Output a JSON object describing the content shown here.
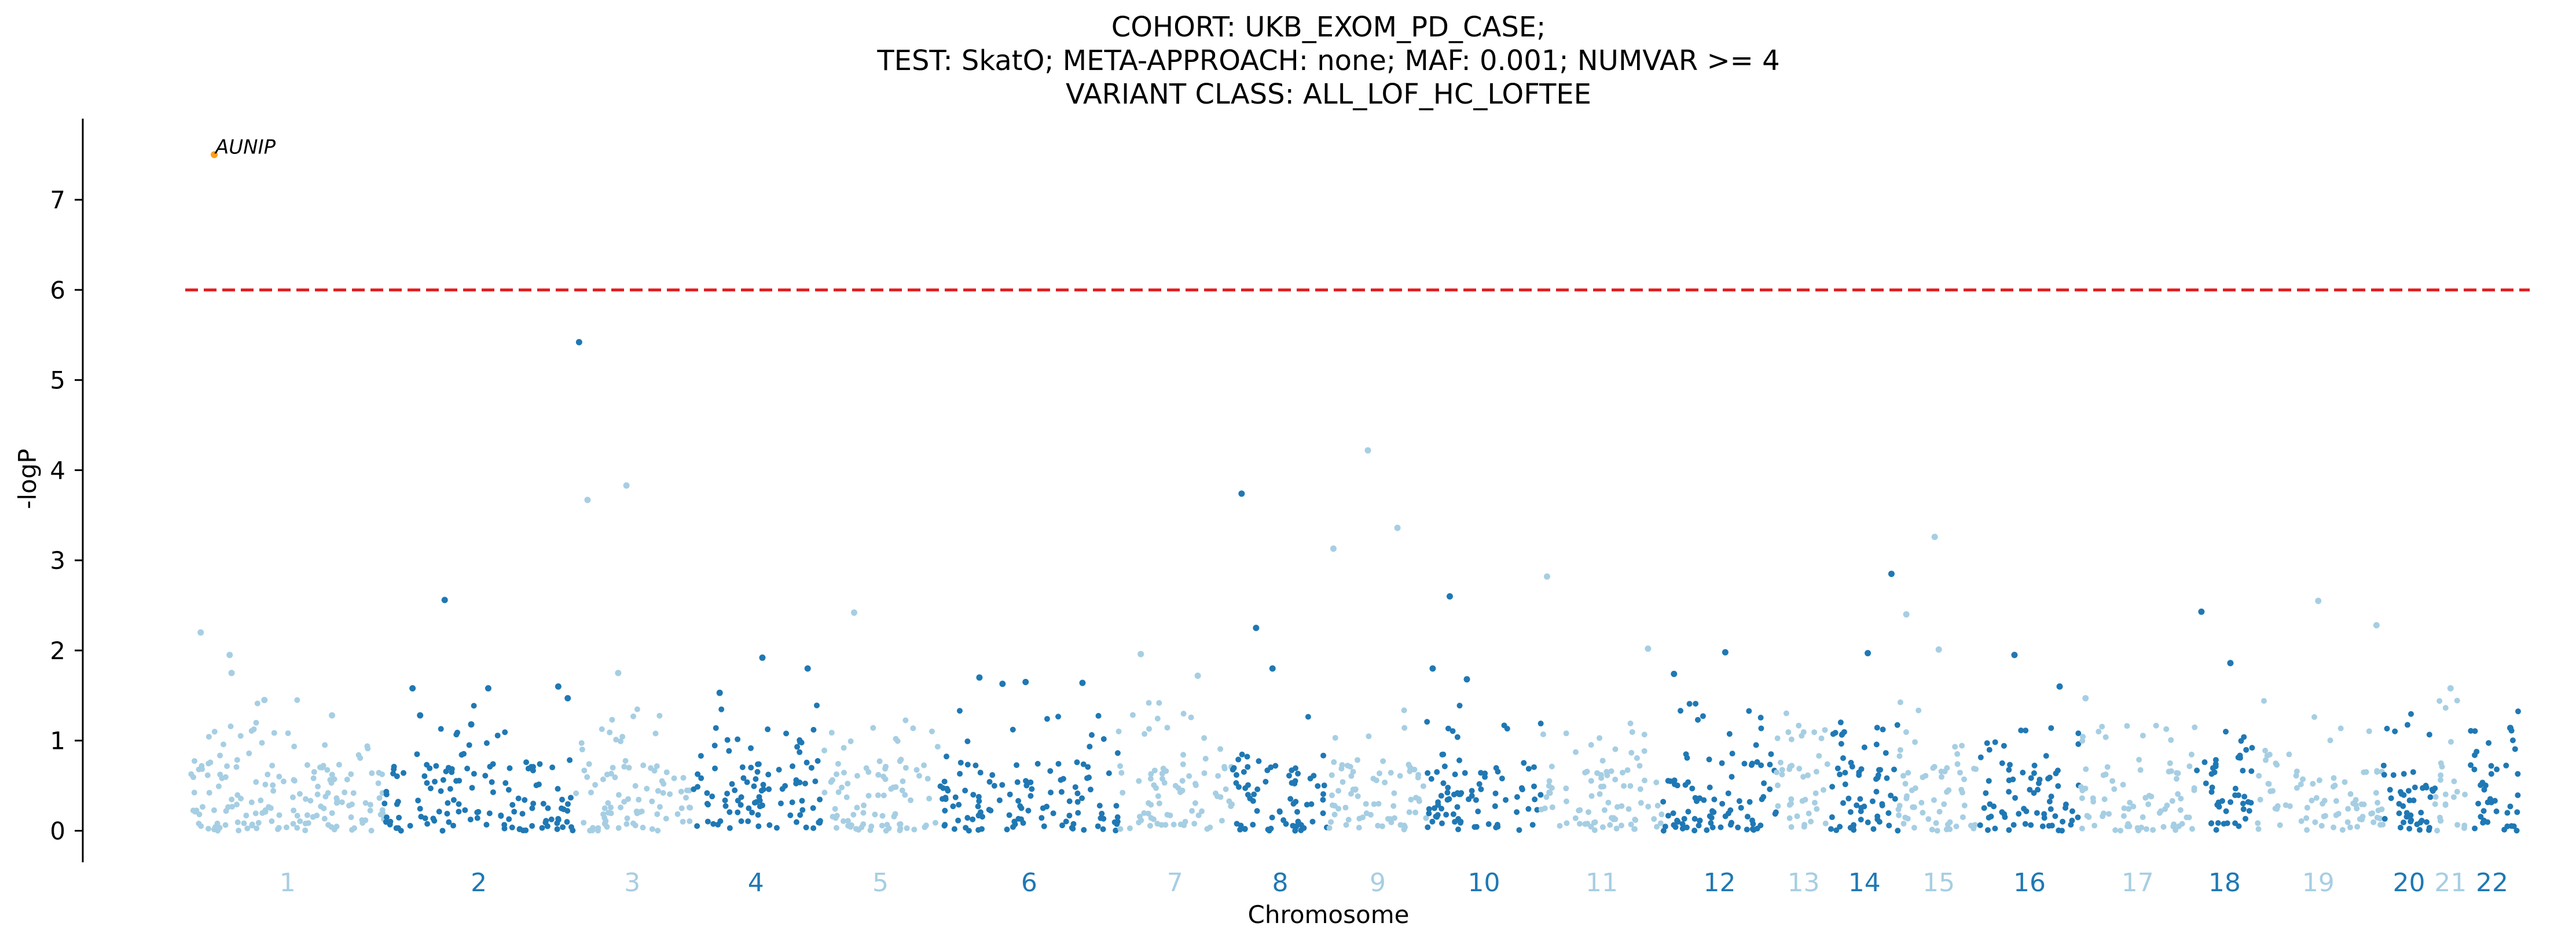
{
  "title": {
    "line1": "COHORT: UKB_EXOM_PD_CASE;",
    "line2": "TEST: SkatO; META-APPROACH: none; MAF: 0.001; NUMVAR >= 4",
    "line3": "VARIANT CLASS: ALL_LOF_HC_LOFTEE"
  },
  "chart_data": {
    "type": "scatter",
    "subtype": "manhattan",
    "xlabel": "Chromosome",
    "ylabel": "-logP",
    "ylim": [
      -0.35,
      7.9
    ],
    "yticks": [
      0,
      1,
      2,
      3,
      4,
      5,
      6,
      7
    ],
    "threshold": {
      "value": 6,
      "style": "dashed",
      "color": "#e41a1c"
    },
    "grid": false,
    "legend": "none",
    "colors": {
      "odd": "#a6cee3",
      "even": "#1f78b4",
      "highlight": "#ff9f1c",
      "threshold": "#e41a1c"
    },
    "chromosomes": [
      {
        "label": "1",
        "start": 0,
        "end": 1.0
      },
      {
        "label": "2",
        "start": 1.0,
        "end": 1.98
      },
      {
        "label": "3",
        "start": 1.98,
        "end": 2.59
      },
      {
        "label": "4",
        "start": 2.59,
        "end": 3.26
      },
      {
        "label": "5",
        "start": 3.26,
        "end": 3.88
      },
      {
        "label": "6",
        "start": 3.88,
        "end": 4.8
      },
      {
        "label": "7",
        "start": 4.8,
        "end": 5.39
      },
      {
        "label": "8",
        "start": 5.39,
        "end": 5.89
      },
      {
        "label": "9",
        "start": 5.89,
        "end": 6.4
      },
      {
        "label": "10",
        "start": 6.4,
        "end": 6.99
      },
      {
        "label": "11",
        "start": 6.99,
        "end": 7.62
      },
      {
        "label": "12",
        "start": 7.62,
        "end": 8.21
      },
      {
        "label": "13",
        "start": 8.21,
        "end": 8.49
      },
      {
        "label": "14",
        "start": 8.49,
        "end": 8.84
      },
      {
        "label": "15",
        "start": 8.84,
        "end": 9.26
      },
      {
        "label": "16",
        "start": 9.26,
        "end": 9.78
      },
      {
        "label": "17",
        "start": 9.78,
        "end": 10.38
      },
      {
        "label": "18",
        "start": 10.38,
        "end": 10.68
      },
      {
        "label": "19",
        "start": 10.68,
        "end": 11.35
      },
      {
        "label": "20",
        "start": 11.35,
        "end": 11.62
      },
      {
        "label": "21",
        "start": 11.62,
        "end": 11.78
      },
      {
        "label": "22",
        "start": 11.78,
        "end": 12.05
      }
    ],
    "points_per_chromosome": [
      162,
      130,
      88,
      96,
      85,
      118,
      80,
      70,
      72,
      84,
      86,
      90,
      42,
      62,
      62,
      72,
      82,
      46,
      84,
      46,
      24,
      42
    ],
    "notable_points": [
      {
        "chr": "1",
        "pos": 0.12,
        "y": 7.5,
        "label": "AUNIP",
        "highlight": true
      },
      {
        "chr": "1",
        "pos": 0.05,
        "y": 2.2
      },
      {
        "chr": "1",
        "pos": 0.2,
        "y": 1.95
      },
      {
        "chr": "1",
        "pos": 0.21,
        "y": 1.75
      },
      {
        "chr": "1",
        "pos": 0.38,
        "y": 1.45
      },
      {
        "chr": "1",
        "pos": 0.73,
        "y": 1.28
      },
      {
        "chr": "2",
        "pos": 0.15,
        "y": 1.58
      },
      {
        "chr": "2",
        "pos": 0.19,
        "y": 1.28
      },
      {
        "chr": "2",
        "pos": 0.32,
        "y": 2.56
      },
      {
        "chr": "2",
        "pos": 0.46,
        "y": 1.18
      },
      {
        "chr": "2",
        "pos": 0.55,
        "y": 1.58
      },
      {
        "chr": "2",
        "pos": 0.92,
        "y": 1.6
      },
      {
        "chr": "2",
        "pos": 0.97,
        "y": 1.47
      },
      {
        "chr": "2",
        "pos": 1.03,
        "y": 5.42
      },
      {
        "chr": "3",
        "pos": 0.12,
        "y": 3.67
      },
      {
        "chr": "3",
        "pos": 0.45,
        "y": 3.83
      },
      {
        "chr": "3",
        "pos": 0.38,
        "y": 1.75
      },
      {
        "chr": "4",
        "pos": 0.22,
        "y": 1.53
      },
      {
        "chr": "4",
        "pos": 0.55,
        "y": 1.92
      },
      {
        "chr": "4",
        "pos": 0.9,
        "y": 1.8
      },
      {
        "chr": "5",
        "pos": 0.28,
        "y": 2.42
      },
      {
        "chr": "6",
        "pos": 0.22,
        "y": 1.7
      },
      {
        "chr": "6",
        "pos": 0.35,
        "y": 1.63
      },
      {
        "chr": "6",
        "pos": 0.48,
        "y": 1.65
      },
      {
        "chr": "6",
        "pos": 0.8,
        "y": 1.64
      },
      {
        "chr": "7",
        "pos": 0.2,
        "y": 1.96
      },
      {
        "chr": "7",
        "pos": 0.7,
        "y": 1.72
      },
      {
        "chr": "8",
        "pos": 0.1,
        "y": 3.74
      },
      {
        "chr": "8",
        "pos": 0.25,
        "y": 2.25
      },
      {
        "chr": "8",
        "pos": 0.42,
        "y": 1.8
      },
      {
        "chr": "9",
        "pos": 0.05,
        "y": 3.13
      },
      {
        "chr": "9",
        "pos": 0.4,
        "y": 4.22
      },
      {
        "chr": "9",
        "pos": 0.7,
        "y": 3.36
      },
      {
        "chr": "10",
        "pos": 0.05,
        "y": 1.8
      },
      {
        "chr": "10",
        "pos": 0.2,
        "y": 2.6
      },
      {
        "chr": "10",
        "pos": 0.35,
        "y": 1.68
      },
      {
        "chr": "11",
        "pos": 0.05,
        "y": 2.82
      },
      {
        "chr": "11",
        "pos": 0.88,
        "y": 2.02
      },
      {
        "chr": "12",
        "pos": 0.1,
        "y": 1.74
      },
      {
        "chr": "12",
        "pos": 0.55,
        "y": 1.98
      },
      {
        "chr": "14",
        "pos": 0.55,
        "y": 1.97
      },
      {
        "chr": "14",
        "pos": 0.9,
        "y": 2.85
      },
      {
        "chr": "15",
        "pos": 0.1,
        "y": 2.4
      },
      {
        "chr": "15",
        "pos": 0.45,
        "y": 3.26
      },
      {
        "chr": "15",
        "pos": 0.5,
        "y": 2.01
      },
      {
        "chr": "16",
        "pos": 0.35,
        "y": 1.95
      },
      {
        "chr": "16",
        "pos": 0.8,
        "y": 1.6
      },
      {
        "chr": "17",
        "pos": 0.05,
        "y": 1.47
      },
      {
        "chr": "18",
        "pos": 0.1,
        "y": 2.43
      },
      {
        "chr": "18",
        "pos": 0.6,
        "y": 1.86
      },
      {
        "chr": "19",
        "pos": 0.5,
        "y": 2.55
      },
      {
        "chr": "19",
        "pos": 0.95,
        "y": 2.28
      },
      {
        "chr": "21",
        "pos": 0.5,
        "y": 1.58
      },
      {
        "chr": "22",
        "pos": 0.85,
        "y": 1.14
      }
    ]
  }
}
